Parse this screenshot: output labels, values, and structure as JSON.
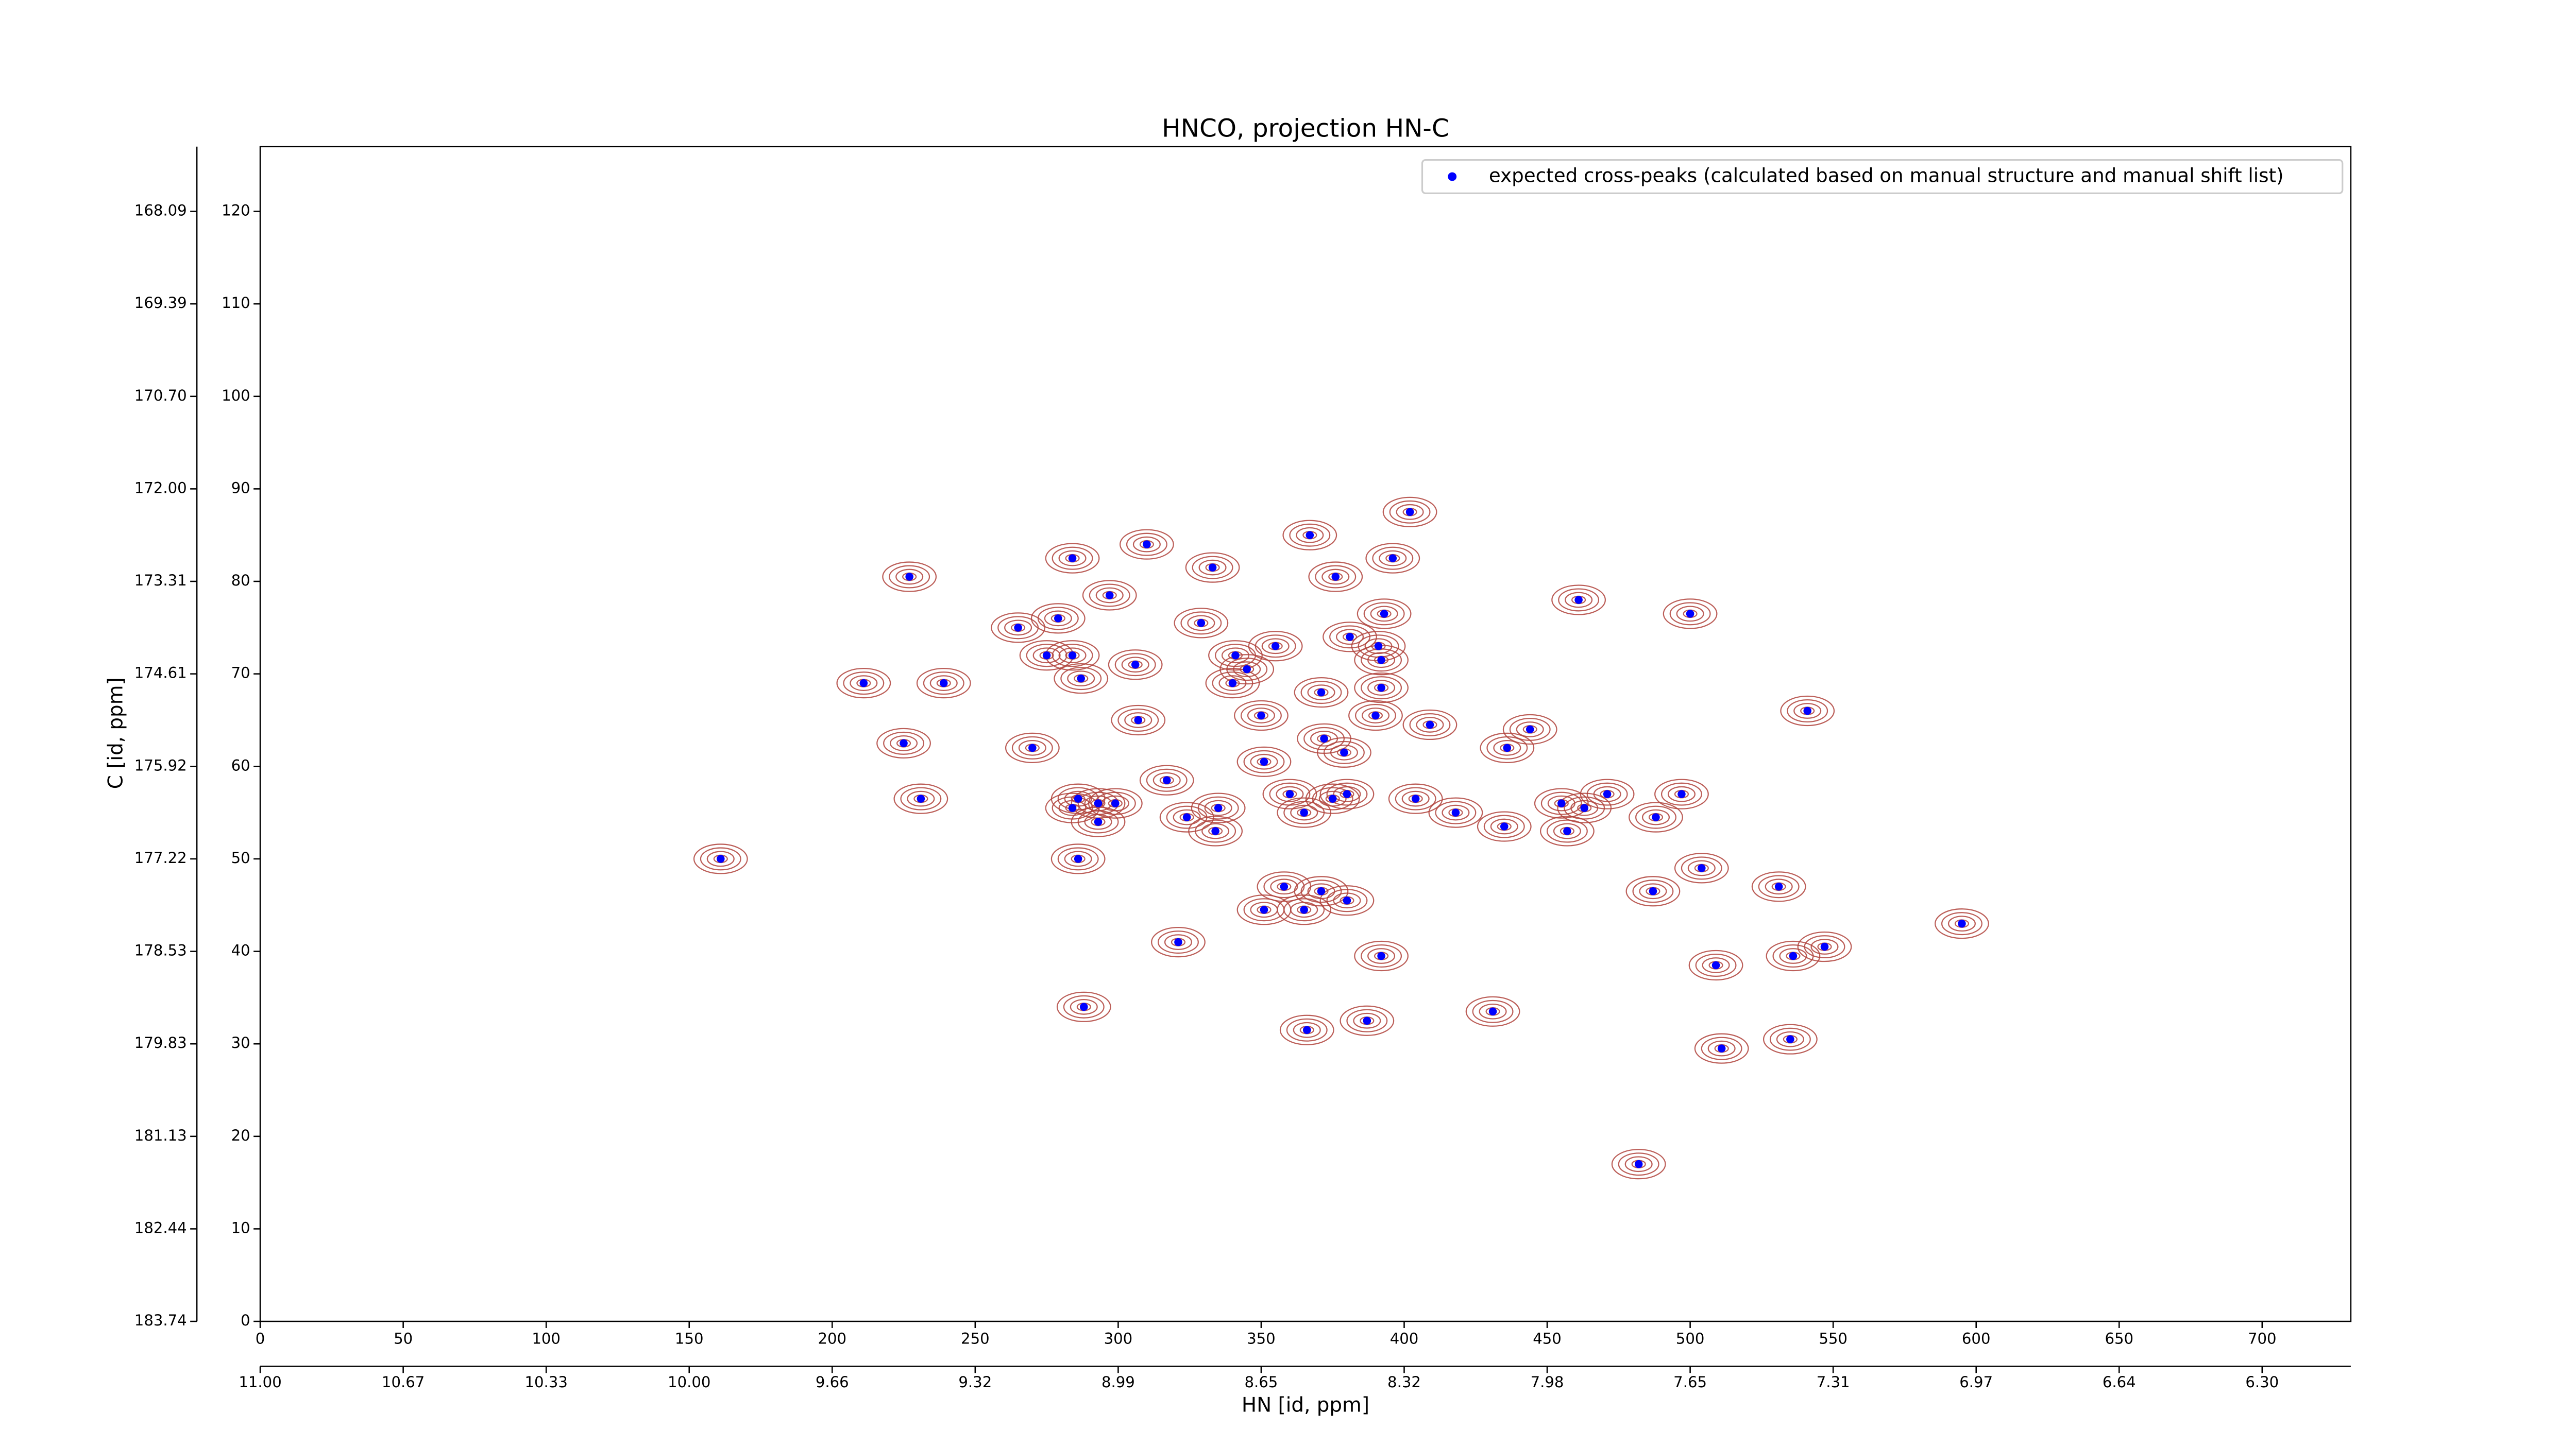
{
  "chart_data": {
    "type": "scatter",
    "title": "HNCO, projection HN-C",
    "x_label": "HN [id, ppm]",
    "y_label": "C [id, ppm]",
    "xlim": [
      0,
      731
    ],
    "ylim": [
      0,
      127
    ],
    "xticks": [
      0,
      50,
      100,
      150,
      200,
      250,
      300,
      350,
      400,
      450,
      500,
      550,
      600,
      650,
      700
    ],
    "yticks": [
      0,
      10,
      20,
      30,
      40,
      50,
      60,
      70,
      80,
      90,
      100,
      110,
      120
    ],
    "x_ppm_ticks": [
      {
        "value": 0,
        "label": "11.00"
      },
      {
        "value": 50,
        "label": "10.67"
      },
      {
        "value": 100,
        "label": "10.33"
      },
      {
        "value": 150,
        "label": "10.00"
      },
      {
        "value": 200,
        "label": "9.66"
      },
      {
        "value": 250,
        "label": "9.32"
      },
      {
        "value": 300,
        "label": "8.99"
      },
      {
        "value": 350,
        "label": "8.65"
      },
      {
        "value": 400,
        "label": "8.32"
      },
      {
        "value": 450,
        "label": "7.98"
      },
      {
        "value": 500,
        "label": "7.65"
      },
      {
        "value": 550,
        "label": "7.31"
      },
      {
        "value": 600,
        "label": "6.97"
      },
      {
        "value": 650,
        "label": "6.64"
      },
      {
        "value": 700,
        "label": "6.30"
      }
    ],
    "y_ppm_ticks": [
      {
        "value": 0,
        "label": "183.74"
      },
      {
        "value": 10,
        "label": "182.44"
      },
      {
        "value": 20,
        "label": "181.13"
      },
      {
        "value": 30,
        "label": "179.83"
      },
      {
        "value": 40,
        "label": "178.53"
      },
      {
        "value": 50,
        "label": "177.22"
      },
      {
        "value": 60,
        "label": "175.92"
      },
      {
        "value": 70,
        "label": "174.61"
      },
      {
        "value": 80,
        "label": "173.31"
      },
      {
        "value": 90,
        "label": "172.00"
      },
      {
        "value": 100,
        "label": "170.70"
      },
      {
        "value": 110,
        "label": "169.39"
      },
      {
        "value": 120,
        "label": "168.09"
      }
    ],
    "legend_loc": "upper right",
    "contour_color": "#b0433c",
    "x": [
      161,
      211,
      227,
      225,
      239,
      231,
      265,
      270,
      279,
      275,
      284,
      284,
      287,
      286,
      284,
      293,
      293,
      286,
      288,
      297,
      299,
      310,
      306,
      307,
      317,
      321,
      324,
      333,
      329,
      335,
      334,
      341,
      340,
      345,
      350,
      355,
      351,
      351,
      358,
      365,
      365,
      360,
      367,
      371,
      372,
      366,
      371,
      376,
      375,
      380,
      379,
      381,
      380,
      393,
      391,
      392,
      392,
      390,
      396,
      402,
      387,
      392,
      404,
      409,
      418,
      431,
      435,
      436,
      444,
      461,
      455,
      457,
      463,
      471,
      488,
      487,
      482,
      497,
      500,
      504,
      509,
      511,
      531,
      535,
      536,
      541,
      547,
      595
    ],
    "series": [
      {
        "name": "expected cross-peaks (calculated based on manual structure and manual shift list)",
        "color": "#0000ff",
        "values": [
          50,
          69,
          80.5,
          62.5,
          69,
          56.5,
          75,
          62,
          76,
          72,
          82.5,
          72,
          69.5,
          56.5,
          55.5,
          56,
          54,
          50,
          34,
          78.5,
          56,
          84,
          71,
          65,
          58.5,
          41,
          54.5,
          81.5,
          75.5,
          55.5,
          53,
          72,
          69,
          70.5,
          65.5,
          73,
          60.5,
          44.5,
          47,
          44.5,
          55,
          57,
          85,
          68,
          63,
          31.5,
          46.5,
          80.5,
          56.5,
          57,
          61.5,
          74,
          45.5,
          76.5,
          73,
          71.5,
          68.5,
          65.5,
          82.5,
          87.5,
          32.5,
          39.5,
          56.5,
          64.5,
          55,
          33.5,
          53.5,
          62,
          64,
          78,
          56,
          53,
          55.5,
          57,
          54.5,
          46.5,
          17,
          57,
          76.5,
          49,
          38.5,
          29.5,
          47,
          30.5,
          39.5,
          66,
          40.5,
          43
        ]
      }
    ]
  }
}
